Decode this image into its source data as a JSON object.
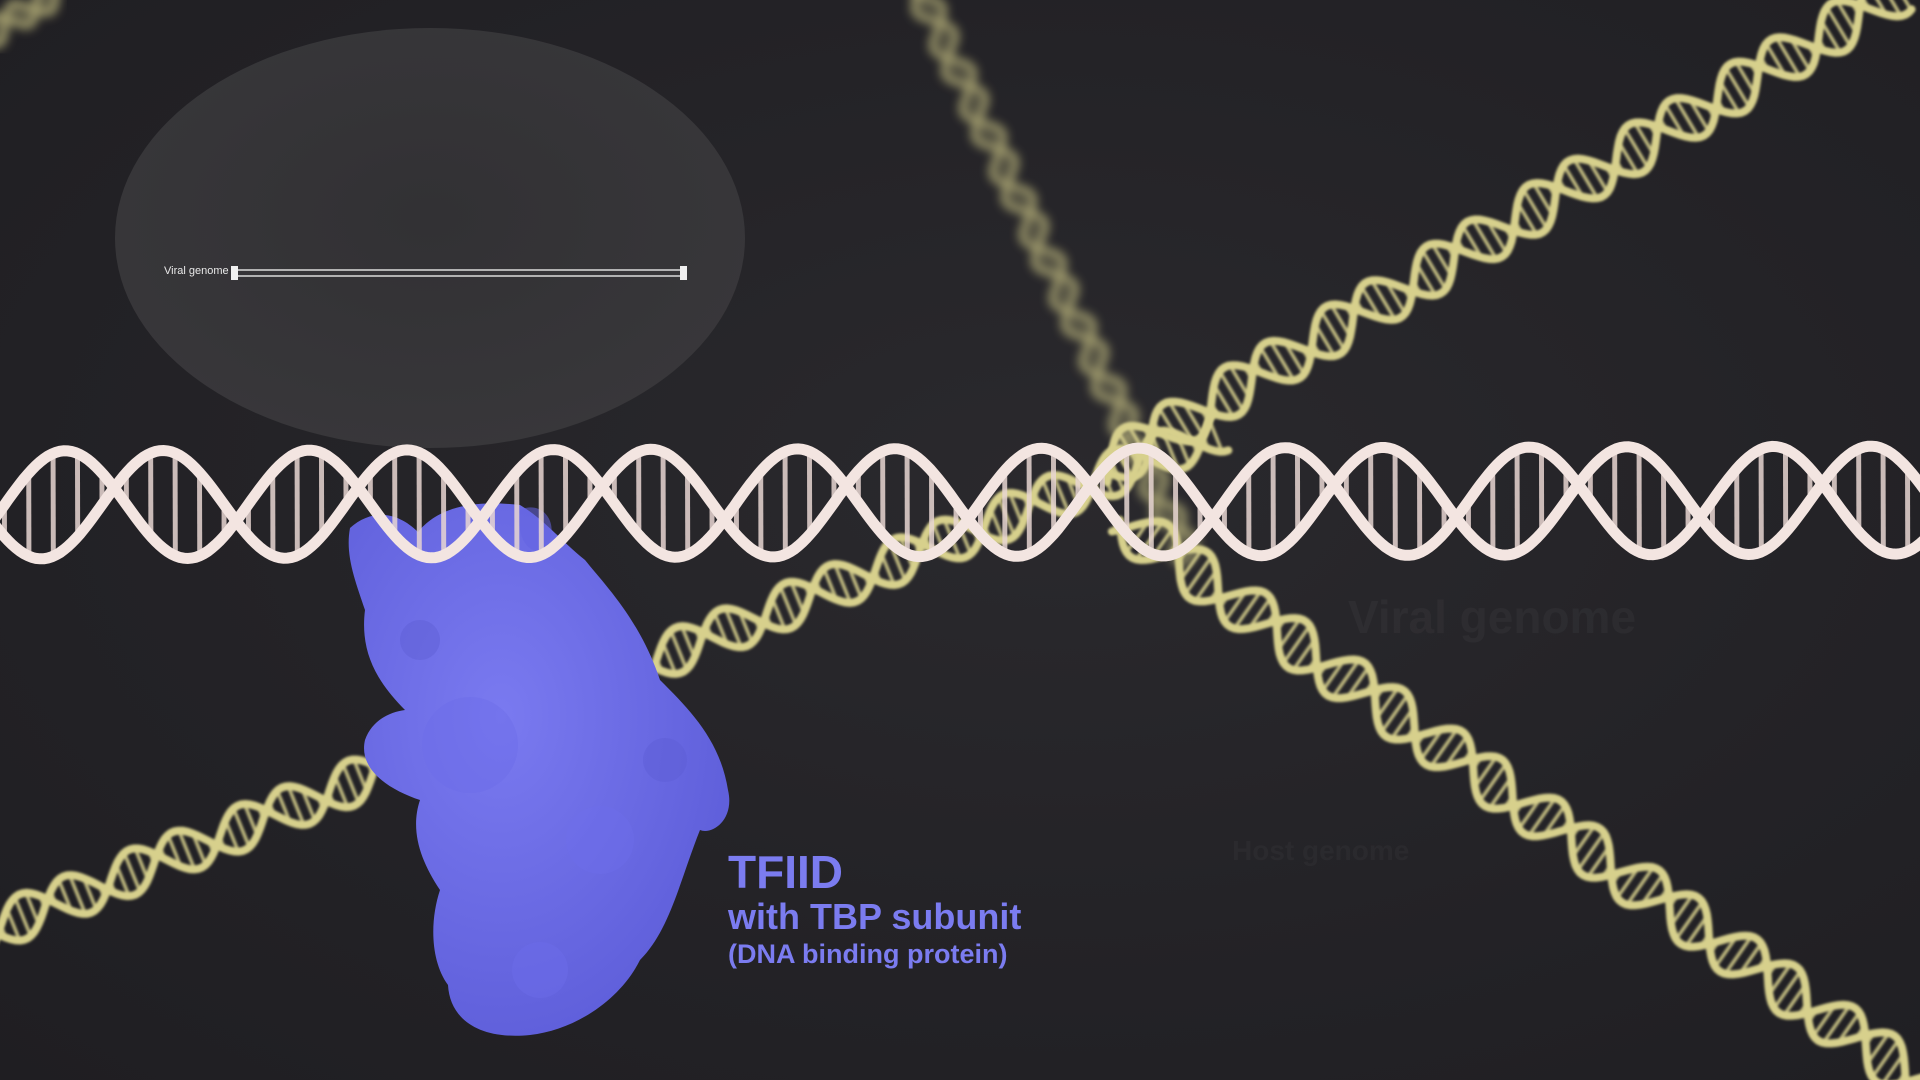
{
  "scene": {
    "background_color": "#242327",
    "host_dna_color": "#d7d08c",
    "viral_dna_color": "#f3e5e1",
    "protein_color": "#6a6ae8"
  },
  "inset": {
    "track_label": "Viral genome"
  },
  "ghost_labels": {
    "viral": "Viral genome",
    "host": "Host genome"
  },
  "protein_caption": {
    "title": "TFIID",
    "subtitle": "with TBP subunit",
    "note": "(DNA binding protein)"
  }
}
